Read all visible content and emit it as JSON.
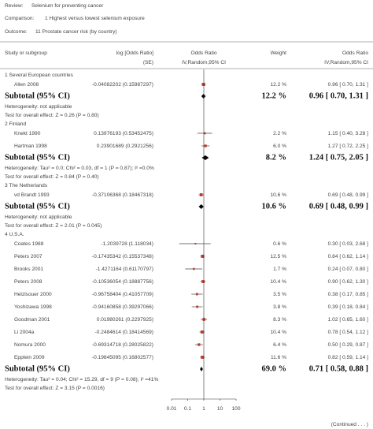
{
  "header": {
    "review_label": "Review:",
    "review": "Selenium for preventing cancer",
    "comparison_label": "Comparison:",
    "comparison": "1 Highest versus lowest selenium exposure",
    "outcome_label": "Outcome:",
    "outcome": "11 Prostate cancer risk (by country)"
  },
  "chart_data": {
    "type": "forest",
    "columns": {
      "study": "Study or subgroup",
      "log_or": "log [Odds Ratio]",
      "se": "(SE)",
      "or_plot": "Odds Ratio",
      "or_plot_method": "IV,Random,95% CI",
      "weight": "Weight",
      "or": "Odds Ratio",
      "or_method": "IV,Random,95% CI"
    },
    "log_scale": true,
    "xlim": [
      0.01,
      100
    ],
    "xticks": [
      0.01,
      0.1,
      1,
      10,
      100
    ],
    "color": "#c0392b",
    "groups": [
      {
        "title": "1 Several European countries",
        "studies": [
          {
            "name": "Allen 2008",
            "log_or_se": "-0.04082202 (0.15987297)",
            "weight": 12.2,
            "weight_label": "12.2 %",
            "or": 0.96,
            "lo": 0.7,
            "hi": 1.31,
            "ci_label": "0.96 [ 0.70, 1.31 ]"
          }
        ],
        "subtotal": {
          "label": "Subtotal (95% CI)",
          "weight": 12.2,
          "weight_label": "12.2 %",
          "or": 0.96,
          "lo": 0.7,
          "hi": 1.31,
          "ci_label": "0.96 [ 0.70, 1.31 ]"
        },
        "heterogeneity": "Heterogeneity: not applicable",
        "test": "Test for overall effect: Z = 0.26 (P = 0.80)"
      },
      {
        "title": "2 Finland",
        "studies": [
          {
            "name": "Knekt 1990",
            "log_or_se": "0.13976193 (0.53452475)",
            "weight": 2.2,
            "weight_label": "2.2 %",
            "or": 1.15,
            "lo": 0.4,
            "hi": 3.28,
            "ci_label": "1.15 [ 0.40, 3.28 ]"
          },
          {
            "name": "Hartman 1998",
            "log_or_se": "0.23901689 (0.2921256)",
            "weight": 6.0,
            "weight_label": "6.0 %",
            "or": 1.27,
            "lo": 0.72,
            "hi": 2.25,
            "ci_label": "1.27 [ 0.72, 2.25 ]"
          }
        ],
        "subtotal": {
          "label": "Subtotal (95% CI)",
          "weight": 8.2,
          "weight_label": "8.2 %",
          "or": 1.24,
          "lo": 0.75,
          "hi": 2.05,
          "ci_label": "1.24 [ 0.75, 2.05 ]"
        },
        "heterogeneity": "Heterogeneity: Tau² = 0.0; Chi² = 0.03, df = 1 (P = 0.87); I² =0.0%",
        "test": "Test for overall effect: Z = 0.84 (P = 0.40)"
      },
      {
        "title": "3 The Netherlands",
        "studies": [
          {
            "name": "vd Brandt 1993",
            "log_or_se": "-0.37106368 (0.18467318)",
            "weight": 10.6,
            "weight_label": "10.6 %",
            "or": 0.69,
            "lo": 0.48,
            "hi": 0.99,
            "ci_label": "0.69 [ 0.48, 0.99 ]"
          }
        ],
        "subtotal": {
          "label": "Subtotal (95% CI)",
          "weight": 10.6,
          "weight_label": "10.6 %",
          "or": 0.69,
          "lo": 0.48,
          "hi": 0.99,
          "ci_label": "0.69 [ 0.48, 0.99 ]"
        },
        "heterogeneity": "Heterogeneity: not applicable",
        "test": "Test for overall effect: Z = 2.01 (P = 0.045)"
      },
      {
        "title": "4 U.S.A.",
        "studies": [
          {
            "name": "Coates 1988",
            "log_or_se": "-1.2039728 (1.118034)",
            "weight": 0.6,
            "weight_label": "0.6 %",
            "or": 0.3,
            "lo": 0.03,
            "hi": 2.68,
            "ci_label": "0.30 [ 0.03, 2.68 ]"
          },
          {
            "name": "Peters 2007",
            "log_or_se": "-0.17435342 (0.15537348)",
            "weight": 12.5,
            "weight_label": "12.5 %",
            "or": 0.84,
            "lo": 0.62,
            "hi": 1.14,
            "ci_label": "0.84 [ 0.62, 1.14 ]"
          },
          {
            "name": "Brooks 2001",
            "log_or_se": "-1.4271164 (0.61170797)",
            "weight": 1.7,
            "weight_label": "1.7 %",
            "or": 0.24,
            "lo": 0.07,
            "hi": 0.8,
            "ci_label": "0.24 [ 0.07, 0.80 ]"
          },
          {
            "name": "Peters 2008",
            "log_or_se": "-0.10536054 (0.18887756)",
            "weight": 10.4,
            "weight_label": "10.4 %",
            "or": 0.9,
            "lo": 0.62,
            "hi": 1.3,
            "ci_label": "0.90 [ 0.62, 1.30 ]"
          },
          {
            "name": "Helzlsouer 2000",
            "log_or_se": "-0.96758404 (0.41057709)",
            "weight": 3.5,
            "weight_label": "3.5 %",
            "or": 0.38,
            "lo": 0.17,
            "hi": 0.85,
            "ci_label": "0.38 [ 0.17, 0.85 ]"
          },
          {
            "name": "Yoshizawa 1998",
            "log_or_se": "-0.94160858 (0.39297066)",
            "weight": 3.8,
            "weight_label": "3.8 %",
            "or": 0.39,
            "lo": 0.18,
            "hi": 0.84,
            "ci_label": "0.39 [ 0.18, 0.84 ]"
          },
          {
            "name": "Goodman 2001",
            "log_or_se": "0.01980261 (0.2297925)",
            "weight": 8.3,
            "weight_label": "8.3 %",
            "or": 1.02,
            "lo": 0.65,
            "hi": 1.6,
            "ci_label": "1.02 [ 0.65, 1.60 ]"
          },
          {
            "name": "Li 2004a",
            "log_or_se": "-0.2484614 (0.18414569)",
            "weight": 10.4,
            "weight_label": "10.4 %",
            "or": 0.78,
            "lo": 0.54,
            "hi": 1.12,
            "ci_label": "0.78 [ 0.54, 1.12 ]"
          },
          {
            "name": "Nomura 2000",
            "log_or_se": "-0.69314718 (0.28025822)",
            "weight": 6.4,
            "weight_label": "6.4 %",
            "or": 0.5,
            "lo": 0.29,
            "hi": 0.87,
            "ci_label": "0.50 [ 0.29, 0.87 ]"
          },
          {
            "name": "Epplein 2009",
            "log_or_se": "-0.19845095 (0.16802577)",
            "weight": 11.6,
            "weight_label": "11.6 %",
            "or": 0.82,
            "lo": 0.59,
            "hi": 1.14,
            "ci_label": "0.82 [ 0.59, 1.14 ]"
          }
        ],
        "subtotal": {
          "label": "Subtotal (95% CI)",
          "weight": 69.0,
          "weight_label": "69.0 %",
          "or": 0.71,
          "lo": 0.58,
          "hi": 0.88,
          "ci_label": "0.71 [ 0.58, 0.88 ]"
        },
        "heterogeneity": "Heterogeneity: Tau² = 0.04; Chi² = 15.29, df = 9 (P = 0.08); I² =41%",
        "test": "Test for overall effect: Z = 3.15 (P = 0.0016)"
      }
    ]
  },
  "footer": {
    "continued": "(Continued . . . )"
  }
}
